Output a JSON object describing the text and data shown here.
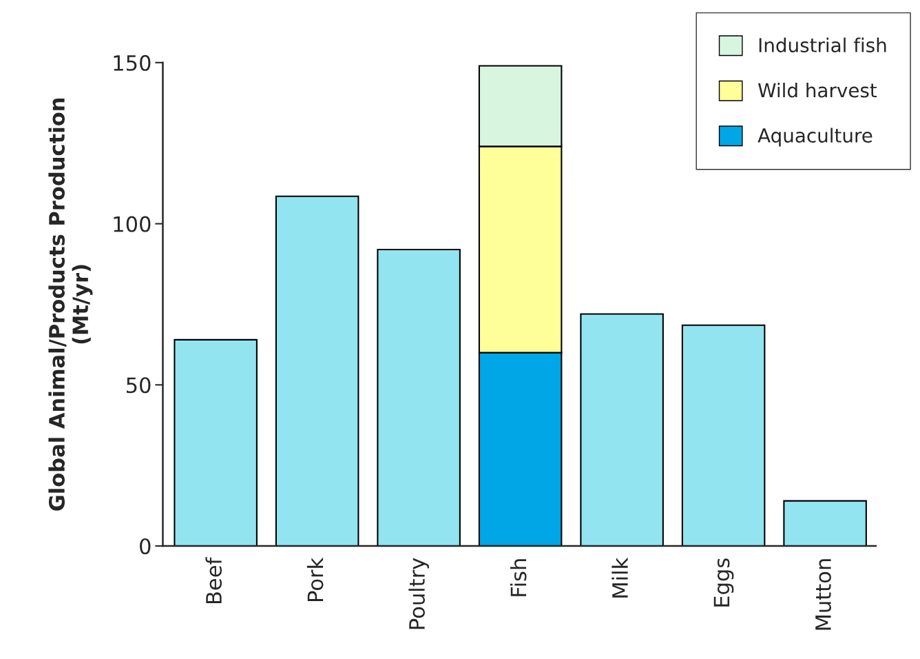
{
  "chart_data": {
    "type": "bar",
    "stacked": true,
    "ylabel": "Global Animal/Products Production\n(Mt/yr)",
    "categories": [
      "Beef",
      "Pork",
      "Poultry",
      "Fish",
      "Milk",
      "Eggs",
      "Mutton"
    ],
    "series": [
      {
        "color": "#92e5f0",
        "values": [
          64,
          108.5,
          92,
          null,
          72,
          68.5,
          14
        ]
      },
      {
        "name": "Aquaculture",
        "color": "#00a6e6",
        "values": [
          null,
          null,
          null,
          60,
          null,
          null,
          null
        ]
      },
      {
        "name": "Wild harvest",
        "color": "#ffff99",
        "values": [
          null,
          null,
          null,
          64,
          null,
          null,
          null
        ]
      },
      {
        "name": "Industrial fish",
        "color": "#d8f5e0",
        "values": [
          null,
          null,
          null,
          25,
          null,
          null,
          null
        ]
      }
    ],
    "ylim": [
      0,
      150
    ],
    "yticks": [
      0,
      50,
      100,
      150
    ],
    "grid": false,
    "legend": "top right"
  }
}
